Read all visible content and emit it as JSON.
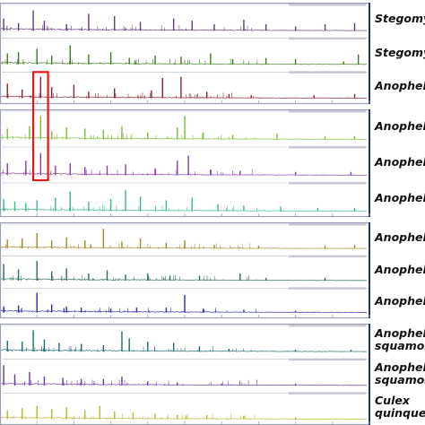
{
  "chart_data": {
    "type": "line",
    "title": "",
    "xlabel": "",
    "ylabel": "",
    "grid": false,
    "legend": "none",
    "x_range": [
      0,
      100
    ],
    "y_range": [
      0,
      1
    ],
    "panels": [
      {
        "name": "panel-1",
        "spectra": [
          {
            "label_lines": [
              "Stegomy"
            ],
            "color": "#5e3a7a",
            "peaks": [
              [
                1,
                0.55
              ],
              [
                5,
                0.35
              ],
              [
                9,
                0.9
              ],
              [
                12,
                0.45
              ],
              [
                18,
                0.3
              ],
              [
                24,
                0.75
              ],
              [
                31,
                0.65
              ],
              [
                38,
                0.4
              ],
              [
                47,
                0.55
              ],
              [
                52,
                0.45
              ],
              [
                58,
                0.3
              ],
              [
                66,
                0.5
              ],
              [
                72,
                0.3
              ],
              [
                80,
                0.2
              ],
              [
                88,
                0.3
              ],
              [
                96,
                0.35
              ]
            ]
          },
          {
            "label_lines": [
              "Stegomy"
            ],
            "color": "#3c7a1f",
            "peaks": [
              [
                2,
                0.5
              ],
              [
                5,
                0.55
              ],
              [
                10,
                0.7
              ],
              [
                14,
                0.4
              ],
              [
                19,
                0.85
              ],
              [
                24,
                0.45
              ],
              [
                30,
                0.55
              ],
              [
                35,
                0.3
              ],
              [
                42,
                0.4
              ],
              [
                49,
                0.35
              ],
              [
                57,
                0.5
              ],
              [
                63,
                0.25
              ],
              [
                72,
                0.3
              ],
              [
                80,
                0.25
              ],
              [
                93,
                0.15
              ],
              [
                97,
                0.45
              ]
            ]
          },
          {
            "label_lines": [
              "Anophele"
            ],
            "color": "#8a2030",
            "peaks": [
              [
                2,
                0.65
              ],
              [
                6,
                0.4
              ],
              [
                11,
                0.95
              ],
              [
                14,
                0.5
              ],
              [
                20,
                0.6
              ],
              [
                24,
                0.3
              ],
              [
                31,
                0.45
              ],
              [
                41,
                0.35
              ],
              [
                44,
                0.9
              ],
              [
                49,
                0.95
              ],
              [
                56,
                0.3
              ],
              [
                62,
                0.2
              ],
              [
                68,
                0.15
              ],
              [
                85,
                0.15
              ],
              [
                96,
                0.2
              ]
            ]
          }
        ]
      },
      {
        "name": "panel-2",
        "spectra": [
          {
            "label_lines": [
              "Anophele"
            ],
            "color": "#7ac030",
            "peaks": [
              [
                2,
                0.45
              ],
              [
                8,
                0.55
              ],
              [
                11,
                0.95
              ],
              [
                14,
                0.35
              ],
              [
                18,
                0.5
              ],
              [
                23,
                0.45
              ],
              [
                28,
                0.4
              ],
              [
                33,
                0.55
              ],
              [
                40,
                0.3
              ],
              [
                48,
                0.5
              ],
              [
                50,
                0.95
              ],
              [
                55,
                0.3
              ],
              [
                63,
                0.2
              ],
              [
                75,
                0.25
              ],
              [
                88,
                0.15
              ],
              [
                96,
                0.15
              ]
            ]
          },
          {
            "label_lines": [
              "Anopheles"
            ],
            "color": "#8a3fa8",
            "peaks": [
              [
                2,
                0.5
              ],
              [
                7,
                0.6
              ],
              [
                11,
                0.9
              ],
              [
                15,
                0.4
              ],
              [
                19,
                0.5
              ],
              [
                23,
                0.35
              ],
              [
                29,
                0.4
              ],
              [
                34,
                0.45
              ],
              [
                42,
                0.3
              ],
              [
                48,
                0.6
              ],
              [
                51,
                0.8
              ],
              [
                57,
                0.25
              ],
              [
                65,
                0.2
              ],
              [
                80,
                0.15
              ],
              [
                95,
                0.15
              ]
            ]
          },
          {
            "label_lines": [
              "Anophele"
            ],
            "color": "#3ab890",
            "peaks": [
              [
                1,
                0.5
              ],
              [
                4,
                0.4
              ],
              [
                7,
                0.35
              ],
              [
                10,
                0.45
              ],
              [
                15,
                0.55
              ],
              [
                19,
                0.8
              ],
              [
                24,
                0.4
              ],
              [
                30,
                0.5
              ],
              [
                34,
                0.85
              ],
              [
                38,
                0.6
              ],
              [
                45,
                0.45
              ],
              [
                52,
                0.55
              ],
              [
                59,
                0.3
              ],
              [
                66,
                0.25
              ],
              [
                76,
                0.2
              ],
              [
                86,
                0.15
              ],
              [
                96,
                0.15
              ]
            ]
          }
        ]
      },
      {
        "name": "panel-3",
        "spectra": [
          {
            "label_lines": [
              "Anophele"
            ],
            "color": "#a08a30",
            "peaks": [
              [
                2,
                0.45
              ],
              [
                6,
                0.5
              ],
              [
                10,
                0.75
              ],
              [
                14,
                0.4
              ],
              [
                18,
                0.55
              ],
              [
                23,
                0.4
              ],
              [
                28,
                0.95
              ],
              [
                33,
                0.35
              ],
              [
                38,
                0.5
              ],
              [
                45,
                0.3
              ],
              [
                50,
                0.4
              ],
              [
                58,
                0.2
              ],
              [
                70,
                0.15
              ],
              [
                88,
                0.15
              ],
              [
                96,
                0.2
              ]
            ]
          },
          {
            "label_lines": [
              "Anophele"
            ],
            "color": "#2f6a5a",
            "peaks": [
              [
                1,
                0.8
              ],
              [
                5,
                0.55
              ],
              [
                10,
                0.95
              ],
              [
                14,
                0.45
              ],
              [
                18,
                0.6
              ],
              [
                24,
                0.35
              ],
              [
                29,
                0.5
              ],
              [
                34,
                0.3
              ],
              [
                40,
                0.35
              ],
              [
                46,
                0.25
              ],
              [
                54,
                0.25
              ],
              [
                65,
                0.35
              ],
              [
                72,
                0.15
              ],
              [
                88,
                0.15
              ]
            ]
          },
          {
            "label_lines": [
              "Anophele"
            ],
            "color": "#2a2ab0",
            "peaks": [
              [
                1,
                0.3
              ],
              [
                5,
                0.35
              ],
              [
                10,
                0.95
              ],
              [
                14,
                0.4
              ],
              [
                18,
                0.3
              ],
              [
                22,
                0.25
              ],
              [
                30,
                0.2
              ],
              [
                37,
                0.25
              ],
              [
                45,
                0.25
              ],
              [
                50,
                0.85
              ],
              [
                55,
                0.2
              ],
              [
                66,
                0.15
              ],
              [
                80,
                0.1
              ]
            ]
          }
        ]
      },
      {
        "name": "panel-4",
        "spectra": [
          {
            "label_lines": [
              "Anophele",
              "squamos"
            ],
            "color": "#1f6a70",
            "peaks": [
              [
                2,
                0.5
              ],
              [
                6,
                0.45
              ],
              [
                9,
                0.95
              ],
              [
                12,
                0.55
              ],
              [
                16,
                0.4
              ],
              [
                22,
                0.35
              ],
              [
                28,
                0.3
              ],
              [
                33,
                0.9
              ],
              [
                35,
                0.6
              ],
              [
                40,
                0.45
              ],
              [
                47,
                0.4
              ],
              [
                54,
                0.25
              ],
              [
                62,
                0.15
              ],
              [
                80,
                0.1
              ],
              [
                95,
                0.1
              ]
            ]
          },
          {
            "label_lines": [
              "Anophele",
              "squamos"
            ],
            "color": "#6a3aa0",
            "peaks": [
              [
                1,
                0.9
              ],
              [
                4,
                0.5
              ],
              [
                8,
                0.6
              ],
              [
                12,
                0.4
              ],
              [
                17,
                0.35
              ],
              [
                22,
                0.3
              ],
              [
                28,
                0.3
              ],
              [
                33,
                0.4
              ],
              [
                40,
                0.2
              ],
              [
                48,
                0.15
              ],
              [
                60,
                0.1
              ],
              [
                80,
                0.1
              ]
            ]
          },
          {
            "label_lines": [
              "Culex",
              "quinque"
            ],
            "color": "#b8b830",
            "peaks": [
              [
                2,
                0.4
              ],
              [
                6,
                0.5
              ],
              [
                10,
                0.6
              ],
              [
                14,
                0.45
              ],
              [
                18,
                0.55
              ],
              [
                23,
                0.4
              ],
              [
                27,
                0.6
              ],
              [
                31,
                0.35
              ],
              [
                36,
                0.3
              ],
              [
                42,
                0.25
              ],
              [
                48,
                0.2
              ],
              [
                56,
                0.2
              ],
              [
                66,
                0.15
              ],
              [
                80,
                0.1
              ]
            ]
          }
        ]
      }
    ],
    "highlight_box": {
      "x_range": [
        9,
        13
      ],
      "spectra": [
        "panel-1:2",
        "panel-2:1"
      ],
      "color": "#e01818"
    }
  }
}
